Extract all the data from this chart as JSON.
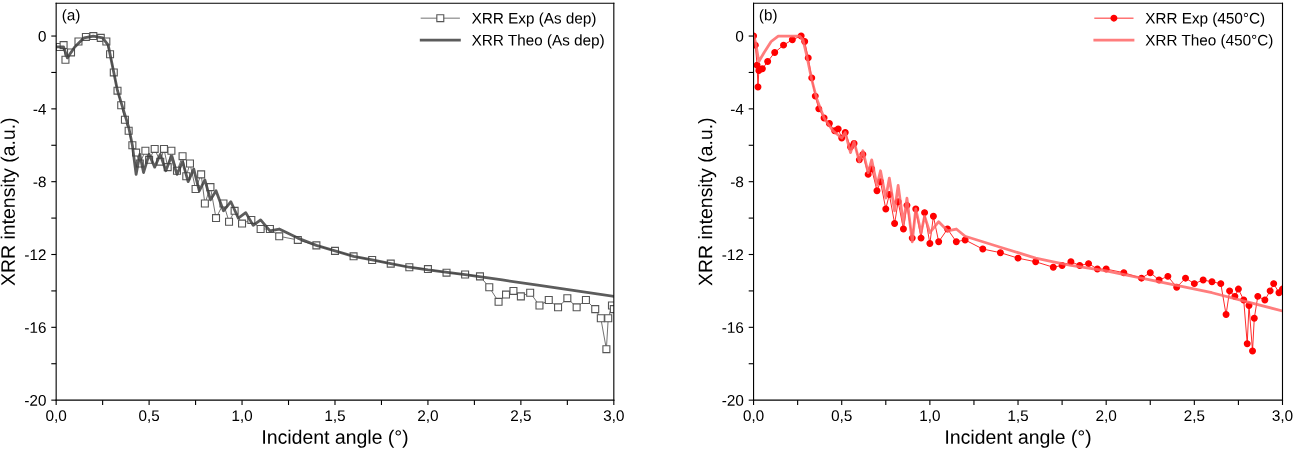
{
  "chart_data": [
    {
      "type": "line",
      "annotations": [
        "(a)"
      ],
      "xlabel": "Incident angle (°)",
      "ylabel": "XRR intensity (a.u.)",
      "xlim": [
        0,
        3
      ],
      "ylim": [
        -20,
        1.8
      ],
      "xticks": [
        {
          "value": 0,
          "label": "0,0"
        },
        {
          "value": 0.25,
          "label": null
        },
        {
          "value": 0.5,
          "label": "0,5"
        },
        {
          "value": 0.75,
          "label": null
        },
        {
          "value": 1,
          "label": "1,0"
        },
        {
          "value": 1.25,
          "label": null
        },
        {
          "value": 1.5,
          "label": "1,5"
        },
        {
          "value": 1.75,
          "label": null
        },
        {
          "value": 2,
          "label": "2,0"
        },
        {
          "value": 2.25,
          "label": null
        },
        {
          "value": 2.5,
          "label": "2,5"
        },
        {
          "value": 2.75,
          "label": null
        },
        {
          "value": 3,
          "label": "3,0"
        }
      ],
      "yticks": [
        -20,
        {
          "value": -18,
          "label": null
        },
        -16,
        {
          "value": -14,
          "label": null
        },
        -12,
        {
          "value": -10,
          "label": null
        },
        -8,
        {
          "value": -6,
          "label": null
        },
        -4,
        {
          "value": -2,
          "label": null
        },
        0
      ],
      "legend": "top right",
      "grid": false,
      "series": [
        {
          "name": "XRR Exp (As dep)",
          "color": "#555555",
          "marker": "square",
          "x": [
            0,
            0.02,
            0.04,
            0.05,
            0.08,
            0.12,
            0.16,
            0.2,
            0.24,
            0.27,
            0.29,
            0.31,
            0.33,
            0.35,
            0.37,
            0.39,
            0.41,
            0.43,
            0.45,
            0.48,
            0.5,
            0.53,
            0.56,
            0.58,
            0.6,
            0.62,
            0.65,
            0.68,
            0.7,
            0.72,
            0.75,
            0.78,
            0.8,
            0.83,
            0.86,
            0.9,
            0.93,
            0.96,
            1.0,
            1.05,
            1.1,
            1.15,
            1.2,
            1.3,
            1.4,
            1.5,
            1.6,
            1.7,
            1.8,
            1.9,
            2.0,
            2.1,
            2.2,
            2.28,
            2.33,
            2.38,
            2.42,
            2.46,
            2.5,
            2.55,
            2.6,
            2.65,
            2.7,
            2.75,
            2.8,
            2.85,
            2.9,
            2.93,
            2.96,
            2.97,
            2.99,
            3.0
          ],
          "values": [
            -0.6,
            -0.6,
            -0.5,
            -1.3,
            -0.9,
            -0.3,
            -0.05,
            0,
            -0.1,
            -0.3,
            -1.0,
            -2.0,
            -3.0,
            -3.8,
            -4.6,
            -5.2,
            -6.0,
            -6.4,
            -7.0,
            -6.3,
            -6.8,
            -6.2,
            -6.9,
            -6.2,
            -7.2,
            -6.3,
            -7.4,
            -6.6,
            -7.7,
            -7.0,
            -8.4,
            -7.6,
            -9.2,
            -8.3,
            -10.0,
            -9.2,
            -10.2,
            -9.6,
            -10.3,
            -10.1,
            -10.6,
            -10.6,
            -11.0,
            -11.2,
            -11.5,
            -11.8,
            -12.1,
            -12.3,
            -12.5,
            -12.7,
            -12.8,
            -13.0,
            -13.1,
            -13.2,
            -13.8,
            -14.6,
            -14.2,
            -14.0,
            -14.3,
            -14.1,
            -14.8,
            -14.5,
            -14.9,
            -14.4,
            -14.9,
            -14.5,
            -15.0,
            -15.5,
            -17.2,
            -15.5,
            -14.8,
            -15.0
          ]
        },
        {
          "name": "XRR Theo (As dep)",
          "color": "#404040",
          "marker": "none",
          "x": [
            0,
            0.04,
            0.06,
            0.1,
            0.15,
            0.2,
            0.25,
            0.28,
            0.3,
            0.33,
            0.36,
            0.39,
            0.41,
            0.43,
            0.45,
            0.47,
            0.5,
            0.53,
            0.56,
            0.59,
            0.62,
            0.65,
            0.68,
            0.71,
            0.74,
            0.77,
            0.8,
            0.83,
            0.86,
            0.9,
            0.94,
            0.98,
            1.02,
            1.06,
            1.1,
            1.15,
            1.2,
            1.3,
            1.4,
            1.5,
            1.6,
            1.7,
            1.8,
            1.9,
            2.0,
            2.2,
            2.4,
            2.6,
            2.8,
            3.0
          ],
          "values": [
            -0.6,
            -0.6,
            -1.2,
            -0.6,
            -0.1,
            0,
            -0.1,
            -0.5,
            -1.5,
            -3.0,
            -4.0,
            -5.0,
            -6.0,
            -7.6,
            -6.5,
            -7.5,
            -6.5,
            -7.2,
            -6.5,
            -7.4,
            -6.6,
            -7.6,
            -6.9,
            -8.0,
            -7.3,
            -8.5,
            -7.9,
            -9.0,
            -8.5,
            -9.6,
            -9.1,
            -10.0,
            -9.7,
            -10.4,
            -10.1,
            -10.7,
            -10.6,
            -11.1,
            -11.5,
            -11.8,
            -12.1,
            -12.3,
            -12.5,
            -12.7,
            -12.85,
            -13.1,
            -13.4,
            -13.7,
            -14.0,
            -14.3
          ]
        }
      ]
    },
    {
      "type": "line",
      "annotations": [
        "(b)"
      ],
      "xlabel": "Incident angle (°)",
      "ylabel": "XRR intensity (a.u.)",
      "xlim": [
        0,
        3
      ],
      "ylim": [
        -20,
        1.8
      ],
      "xticks": [
        {
          "value": 0,
          "label": "0,0"
        },
        {
          "value": 0.25,
          "label": null
        },
        {
          "value": 0.5,
          "label": "0,5"
        },
        {
          "value": 0.75,
          "label": null
        },
        {
          "value": 1,
          "label": "1,0"
        },
        {
          "value": 1.25,
          "label": null
        },
        {
          "value": 1.5,
          "label": "1,5"
        },
        {
          "value": 1.75,
          "label": null
        },
        {
          "value": 2,
          "label": "2,0"
        },
        {
          "value": 2.25,
          "label": null
        },
        {
          "value": 2.5,
          "label": "2,5"
        },
        {
          "value": 2.75,
          "label": null
        },
        {
          "value": 3,
          "label": "3,0"
        }
      ],
      "yticks": [
        -20,
        {
          "value": -18,
          "label": null
        },
        -16,
        {
          "value": -14,
          "label": null
        },
        -12,
        {
          "value": -10,
          "label": null
        },
        -8,
        {
          "value": -6,
          "label": null
        },
        -4,
        {
          "value": -2,
          "label": null
        },
        0
      ],
      "legend": "top right",
      "grid": false,
      "series": [
        {
          "name": "XRR Exp (450°C)",
          "color": "#ff0000",
          "marker": "circle",
          "x": [
            0,
            0.01,
            0.02,
            0.025,
            0.03,
            0.05,
            0.08,
            0.12,
            0.17,
            0.22,
            0.27,
            0.29,
            0.31,
            0.33,
            0.35,
            0.37,
            0.4,
            0.43,
            0.46,
            0.48,
            0.5,
            0.52,
            0.55,
            0.57,
            0.6,
            0.62,
            0.65,
            0.67,
            0.7,
            0.72,
            0.75,
            0.77,
            0.8,
            0.82,
            0.85,
            0.87,
            0.9,
            0.92,
            0.95,
            0.97,
            1.0,
            1.02,
            1.05,
            1.1,
            1.15,
            1.2,
            1.3,
            1.4,
            1.5,
            1.6,
            1.7,
            1.75,
            1.8,
            1.85,
            1.9,
            1.95,
            2.0,
            2.1,
            2.2,
            2.25,
            2.3,
            2.35,
            2.4,
            2.45,
            2.5,
            2.55,
            2.6,
            2.65,
            2.68,
            2.7,
            2.73,
            2.75,
            2.78,
            2.8,
            2.81,
            2.83,
            2.84,
            2.86,
            2.9,
            2.93,
            2.95,
            2.98,
            3.0
          ],
          "values": [
            0,
            -0.5,
            -1.6,
            -2.8,
            -1.9,
            -1.8,
            -1.4,
            -0.9,
            -0.5,
            -0.2,
            0,
            -0.3,
            -1.2,
            -2.3,
            -3.3,
            -4.0,
            -4.5,
            -4.8,
            -5.2,
            -5.1,
            -5.6,
            -5.3,
            -6.1,
            -5.9,
            -6.8,
            -6.5,
            -7.6,
            -7.3,
            -8.5,
            -8.0,
            -9.5,
            -8.7,
            -10.3,
            -9.1,
            -10.6,
            -9.3,
            -11.1,
            -9.5,
            -11.1,
            -9.7,
            -11.4,
            -9.9,
            -11.3,
            -10.6,
            -11.3,
            -11.2,
            -11.7,
            -11.9,
            -12.2,
            -12.4,
            -12.7,
            -12.6,
            -12.4,
            -12.6,
            -12.5,
            -12.8,
            -12.8,
            -13.0,
            -13.3,
            -13.0,
            -13.4,
            -13.2,
            -13.8,
            -13.3,
            -13.6,
            -13.4,
            -13.5,
            -13.6,
            -15.3,
            -14.0,
            -14.3,
            -13.9,
            -14.5,
            -16.9,
            -14.8,
            -17.3,
            -15.5,
            -14.3,
            -14.5,
            -14.0,
            -13.6,
            -14.1,
            -13.9
          ]
        },
        {
          "name": "XRR Theo (450°C)",
          "color": "#ff6666",
          "marker": "none",
          "x": [
            0,
            0.01,
            0.03,
            0.06,
            0.1,
            0.14,
            0.2,
            0.26,
            0.28,
            0.3,
            0.33,
            0.36,
            0.4,
            0.45,
            0.5,
            0.52,
            0.55,
            0.57,
            0.6,
            0.62,
            0.65,
            0.67,
            0.7,
            0.72,
            0.75,
            0.77,
            0.8,
            0.82,
            0.85,
            0.87,
            0.9,
            0.92,
            0.95,
            0.97,
            1.0,
            1.05,
            1.1,
            1.15,
            1.2,
            1.3,
            1.4,
            1.5,
            1.6,
            1.7,
            1.8,
            2.0,
            2.2,
            2.4,
            2.6,
            2.8,
            3.0
          ],
          "values": [
            0,
            -0.3,
            -1.4,
            -0.9,
            -0.3,
            0,
            0,
            0,
            -0.2,
            -1.0,
            -2.4,
            -3.5,
            -4.5,
            -5.2,
            -5.6,
            -5.3,
            -6.4,
            -5.8,
            -6.9,
            -6.3,
            -7.5,
            -6.8,
            -8.2,
            -7.4,
            -8.9,
            -7.8,
            -9.6,
            -8.2,
            -10.3,
            -8.9,
            -11.3,
            -9.5,
            -10.8,
            -9.9,
            -10.8,
            -10.2,
            -10.7,
            -10.6,
            -11.0,
            -11.3,
            -11.6,
            -11.9,
            -12.2,
            -12.4,
            -12.6,
            -12.9,
            -13.3,
            -13.7,
            -14.1,
            -14.6,
            -15.1
          ]
        }
      ]
    }
  ]
}
